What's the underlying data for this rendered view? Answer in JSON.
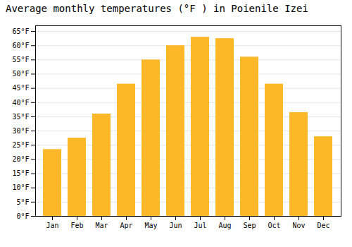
{
  "chart_data": {
    "type": "bar",
    "title": "Average monthly temperatures (°F ) in Poienile Izei",
    "categories": [
      "Jan",
      "Feb",
      "Mar",
      "Apr",
      "May",
      "Jun",
      "Jul",
      "Aug",
      "Sep",
      "Oct",
      "Nov",
      "Dec"
    ],
    "values": [
      23.5,
      27.5,
      36.0,
      46.5,
      55.0,
      60.0,
      63.0,
      62.5,
      56.0,
      46.5,
      36.5,
      28.0
    ],
    "color": "#FDB827",
    "ylim": [
      0,
      67
    ],
    "yticks": [
      {
        "value": 0,
        "label": "0°F"
      },
      {
        "value": 5,
        "label": "5°F"
      },
      {
        "value": 10,
        "label": "10°F"
      },
      {
        "value": 15,
        "label": "15°F"
      },
      {
        "value": 20,
        "label": "20°F"
      },
      {
        "value": 25,
        "label": "25°F"
      },
      {
        "value": 30,
        "label": "30°F"
      },
      {
        "value": 35,
        "label": "35°F"
      },
      {
        "value": 40,
        "label": "40°F"
      },
      {
        "value": 45,
        "label": "45°F"
      },
      {
        "value": 50,
        "label": "50°F"
      },
      {
        "value": 55,
        "label": "55°F"
      },
      {
        "value": 60,
        "label": "60°F"
      },
      {
        "value": 65,
        "label": "65°F"
      }
    ],
    "grid": true
  }
}
